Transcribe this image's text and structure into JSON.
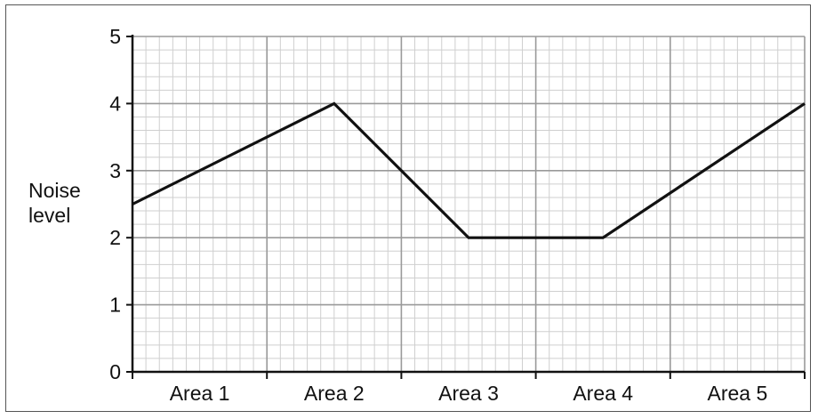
{
  "chart_data": {
    "type": "line",
    "title": "",
    "xlabel": "",
    "ylabel_lines": [
      "Noise",
      "level"
    ],
    "categories": [
      "Area 1",
      "Area 2",
      "Area 3",
      "Area 4",
      "Area 5"
    ],
    "x_boundaries": [
      0,
      1,
      2,
      3,
      4,
      5
    ],
    "ylim": [
      0,
      5
    ],
    "yticks": [
      "0",
      "1",
      "2",
      "3",
      "4",
      "5"
    ],
    "grid": true,
    "legend": "none",
    "series": [
      {
        "x": [
          0,
          1.5,
          2.5,
          3.5,
          5
        ],
        "values": [
          2.5,
          4,
          2,
          2,
          4
        ]
      }
    ],
    "colors": {
      "line": "#111111",
      "grid_major": "#9a9a9a",
      "grid_minor": "#cfcfcf",
      "axis": "#111111"
    }
  }
}
